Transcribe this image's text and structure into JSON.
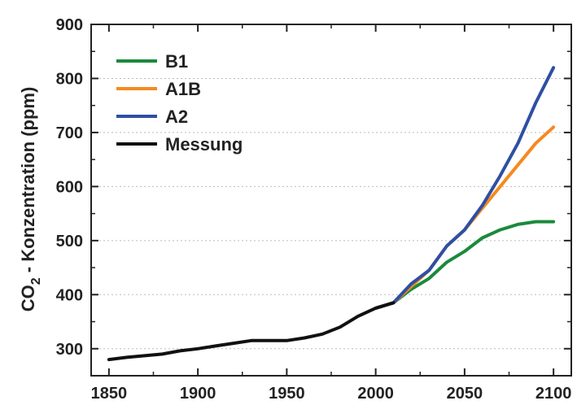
{
  "chart_data": {
    "type": "line",
    "title": "",
    "xlabel": "",
    "ylabel": {
      "prefix": "CO",
      "subscript": "2",
      "suffix": " - Konzentration (ppm)"
    },
    "xlim": [
      1840,
      2110
    ],
    "ylim": [
      250,
      900
    ],
    "xticks": [
      1850,
      1900,
      1950,
      2000,
      2050,
      2100
    ],
    "yticks": [
      300,
      400,
      500,
      600,
      700,
      800,
      900
    ],
    "grid": "horizontal dotted",
    "legend_position": "top-left",
    "series": [
      {
        "name": "B1",
        "color": "#1a8a3c",
        "x": [
          2000,
          2010,
          2020,
          2030,
          2040,
          2050,
          2060,
          2070,
          2080,
          2090,
          2100
        ],
        "y": [
          375,
          385,
          410,
          430,
          460,
          480,
          505,
          520,
          530,
          535,
          535
        ]
      },
      {
        "name": "A1B",
        "color": "#f58a1f",
        "x": [
          2000,
          2010,
          2020,
          2030,
          2040,
          2050,
          2060,
          2070,
          2080,
          2090,
          2100
        ],
        "y": [
          375,
          385,
          415,
          445,
          490,
          520,
          560,
          600,
          640,
          680,
          710
        ]
      },
      {
        "name": "A2",
        "color": "#2e4fa3",
        "x": [
          2000,
          2010,
          2020,
          2030,
          2040,
          2050,
          2060,
          2070,
          2080,
          2090,
          2100
        ],
        "y": [
          375,
          385,
          420,
          445,
          490,
          520,
          565,
          620,
          680,
          755,
          820
        ]
      },
      {
        "name": "Messung",
        "color": "#111111",
        "x": [
          1850,
          1860,
          1870,
          1880,
          1890,
          1900,
          1910,
          1920,
          1930,
          1940,
          1950,
          1960,
          1970,
          1980,
          1990,
          2000,
          2010
        ],
        "y": [
          280,
          284,
          287,
          290,
          296,
          300,
          305,
          310,
          315,
          315,
          315,
          320,
          327,
          340,
          360,
          375,
          385
        ]
      }
    ]
  }
}
